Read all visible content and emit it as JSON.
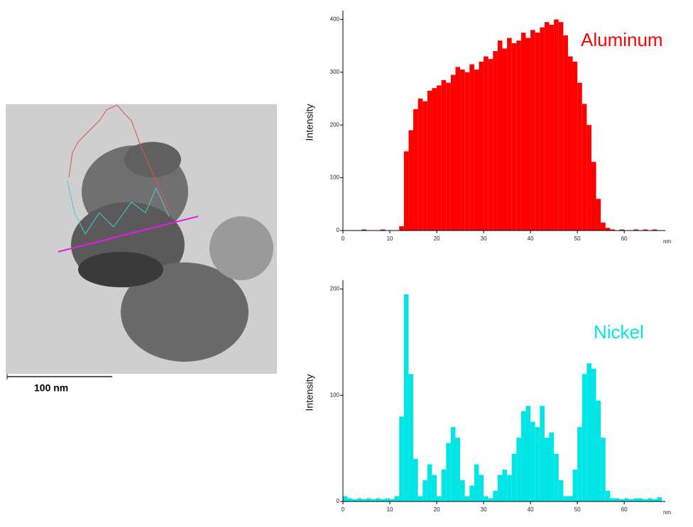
{
  "image": {
    "scale_label": "100 nm"
  },
  "chart_data": [
    {
      "type": "histogram",
      "annotation": "Aluminum",
      "color": "#ff0000",
      "y_label": "Intensity",
      "x_label": "nm",
      "bins": [
        0,
        1,
        2,
        3,
        4,
        5,
        6,
        7,
        8,
        9,
        10,
        11,
        12,
        13,
        14,
        15,
        16,
        17,
        18,
        19,
        20,
        21,
        22,
        23,
        24,
        25,
        26,
        27,
        28,
        29,
        30,
        31,
        32,
        33,
        34,
        35,
        36,
        37,
        38,
        39,
        40,
        41,
        42,
        43,
        44,
        45,
        46,
        47,
        48,
        49,
        50,
        51,
        52,
        53,
        54,
        55,
        56,
        57,
        58,
        59,
        60,
        61,
        62,
        63,
        64,
        65,
        66,
        67,
        68
      ],
      "values": [
        0,
        0,
        0,
        0,
        2,
        0,
        0,
        0,
        2,
        0,
        0,
        0,
        8,
        150,
        190,
        230,
        250,
        245,
        265,
        270,
        275,
        285,
        280,
        295,
        310,
        305,
        300,
        315,
        305,
        320,
        330,
        325,
        340,
        360,
        345,
        365,
        355,
        360,
        375,
        365,
        380,
        375,
        385,
        395,
        390,
        400,
        395,
        370,
        330,
        320,
        280,
        240,
        200,
        130,
        60,
        15,
        5,
        2,
        0,
        2,
        0,
        0,
        2,
        0,
        2,
        0,
        2,
        0
      ],
      "xlim": [
        0,
        68
      ],
      "xticks": [
        0,
        10,
        20,
        30,
        40,
        50,
        60
      ],
      "ylim": [
        0,
        410
      ],
      "yticks": [
        0,
        100,
        200,
        300,
        400
      ]
    },
    {
      "type": "histogram",
      "annotation": "Nickel",
      "color": "#00e5e5",
      "y_label": "Intensity",
      "x_label": "nm",
      "bins": [
        0,
        1,
        2,
        3,
        4,
        5,
        6,
        7,
        8,
        9,
        10,
        11,
        12,
        13,
        14,
        15,
        16,
        17,
        18,
        19,
        20,
        21,
        22,
        23,
        24,
        25,
        26,
        27,
        28,
        29,
        30,
        31,
        32,
        33,
        34,
        35,
        36,
        37,
        38,
        39,
        40,
        41,
        42,
        43,
        44,
        45,
        46,
        47,
        48,
        49,
        50,
        51,
        52,
        53,
        54,
        55,
        56,
        57,
        58,
        59,
        60,
        61,
        62,
        63,
        64,
        65,
        66,
        67,
        68
      ],
      "values": [
        5,
        3,
        2,
        3,
        2,
        3,
        2,
        3,
        2,
        3,
        2,
        5,
        80,
        195,
        120,
        40,
        5,
        20,
        35,
        25,
        5,
        30,
        55,
        70,
        60,
        20,
        5,
        15,
        35,
        25,
        5,
        3,
        10,
        25,
        30,
        25,
        45,
        60,
        85,
        90,
        75,
        70,
        90,
        60,
        65,
        45,
        20,
        5,
        5,
        30,
        70,
        120,
        130,
        125,
        95,
        60,
        10,
        3,
        3,
        2,
        3,
        2,
        3,
        3,
        2,
        3,
        2,
        4
      ],
      "xlim": [
        0,
        68
      ],
      "xticks": [
        0,
        10,
        20,
        30,
        40,
        50,
        60
      ],
      "ylim": [
        0,
        205
      ],
      "yticks": [
        0,
        100,
        200
      ]
    }
  ]
}
